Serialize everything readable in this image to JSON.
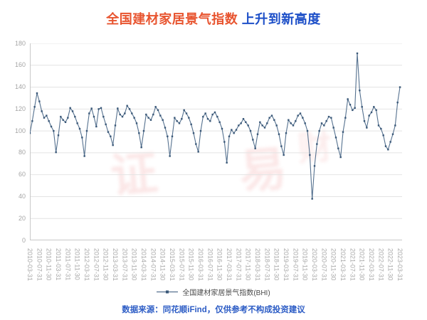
{
  "title": {
    "highlight": "全国建材家居景气指数",
    "rest": " 上升到新高度"
  },
  "legend": {
    "label": "全国建材家居景气指数(BHI)"
  },
  "footer": {
    "text": "数据来源：同花顺iFind，仅供参考不构成投资建议"
  },
  "watermark": {
    "glyphs": [
      "证",
      "易",
      "财"
    ]
  },
  "colors": {
    "title_highlight": "#e8542f",
    "title_rest": "#1d4fc8",
    "line": "#55718f",
    "marker": "#3a5878",
    "grid": "#e4e4e4",
    "axis": "#c9c9c9",
    "tick_text": "#a6a6a6",
    "footer_text": "#2c5cc5"
  },
  "chart_data": {
    "type": "line",
    "title": "全国建材家居景气指数 上升到新高度",
    "xlabel": "",
    "ylabel": "",
    "ylim": [
      0,
      180
    ],
    "y_ticks": [
      0,
      20,
      40,
      60,
      80,
      100,
      120,
      140,
      160,
      180
    ],
    "grid": "horizontal",
    "legend_position": "bottom",
    "x_monthly_start": "2010-03",
    "x_monthly_end": "2023-03",
    "x_tick_labels": [
      "2010-03-31",
      "2010-07-31",
      "2010-11-30",
      "2011-03-31",
      "2011-07-31",
      "2011-11-30",
      "2012-03-31",
      "2012-07-31",
      "2012-11-30",
      "2013-03-31",
      "2013-07-31",
      "2013-11-30",
      "2014-03-31",
      "2014-07-31",
      "2014-11-30",
      "2015-03-31",
      "2015-07-31",
      "2015-11-30",
      "2016-03-31",
      "2016-07-31",
      "2016-11-30",
      "2017-03-31",
      "2017-07-31",
      "2017-11-30",
      "2018-03-31",
      "2018-07-31",
      "2018-11-30",
      "2019-03-31",
      "2019-07-31",
      "2019-11-30",
      "2020-03-31",
      "2020-07-31",
      "2020-11-30",
      "2021-03-31",
      "2021-07-31",
      "2021-11-30",
      "2022-03-31",
      "2022-07-31",
      "2022-11-30",
      "2023-03-31"
    ],
    "series": [
      {
        "name": "全国建材家居景气指数(BHI)",
        "values": [
          98,
          109,
          122,
          134.5,
          127,
          118,
          112,
          114,
          109,
          104,
          100,
          80.5,
          96,
          113,
          110,
          108,
          112,
          121,
          118,
          113,
          107,
          102,
          94,
          77,
          100,
          116,
          120.5,
          113,
          104,
          120,
          121,
          113,
          106,
          99,
          95,
          87,
          105,
          120.5,
          115,
          113,
          116,
          123,
          120,
          116,
          112,
          107,
          98,
          85,
          100,
          115,
          112,
          110,
          115,
          122,
          119,
          114,
          110,
          103,
          95,
          77,
          95,
          112,
          109,
          107,
          111,
          119,
          116,
          112,
          106,
          98,
          88,
          81,
          100,
          113,
          116,
          111,
          109,
          115,
          117,
          113,
          108,
          102,
          90,
          71,
          95,
          101,
          98,
          101,
          105,
          107,
          111,
          108,
          105,
          100,
          92,
          84,
          97,
          108,
          105,
          103,
          107,
          112,
          114,
          110,
          105,
          97,
          86,
          78,
          98,
          110,
          107,
          105,
          109,
          114,
          116,
          112,
          107,
          100,
          78,
          38,
          68,
          88,
          100,
          107,
          105,
          109,
          113,
          112,
          103,
          94,
          84,
          76,
          99,
          112,
          129,
          124,
          119,
          121,
          170.9,
          137,
          122,
          109,
          103,
          114,
          117,
          122,
          119,
          105,
          102,
          96,
          86,
          83,
          90,
          97,
          105,
          126,
          140
        ]
      }
    ]
  }
}
